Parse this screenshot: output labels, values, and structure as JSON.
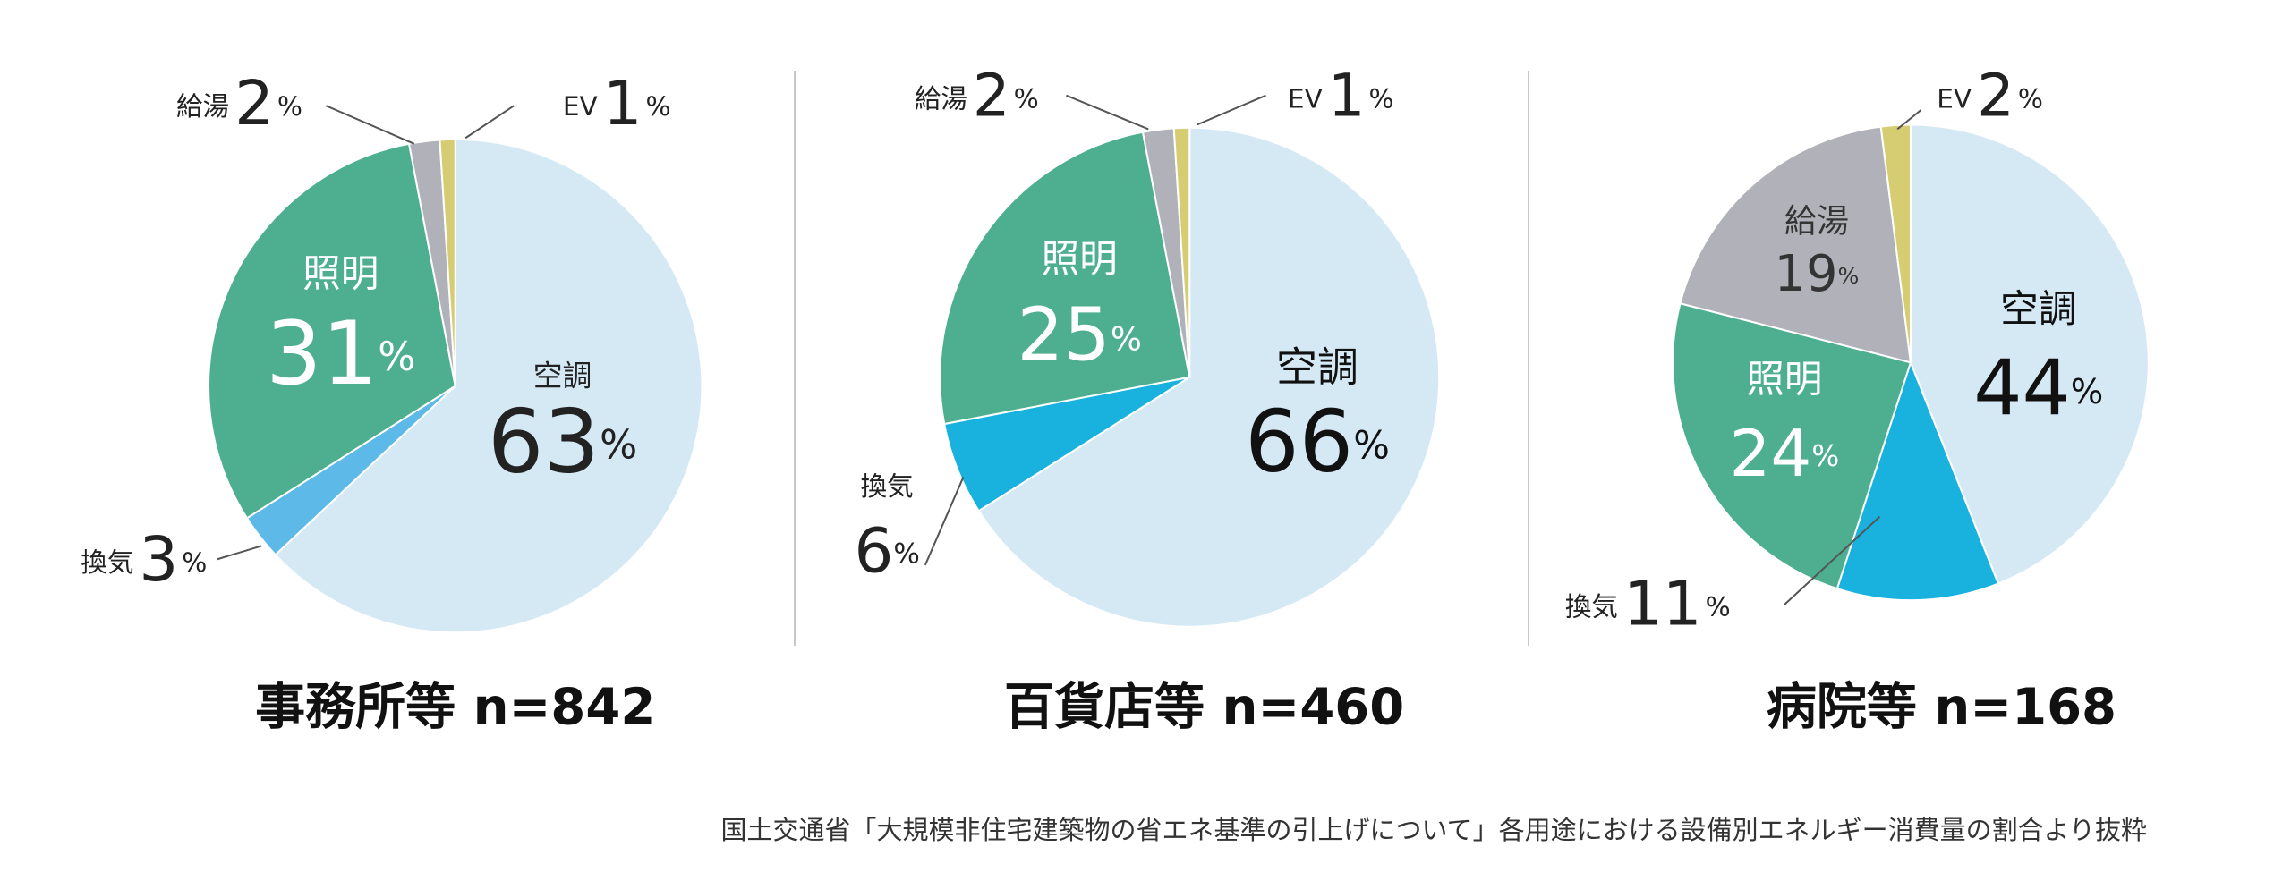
{
  "chart_data": [
    {
      "type": "pie",
      "title": "事務所等 n=842",
      "categories": [
        "空調",
        "換気",
        "照明",
        "給湯",
        "EV"
      ],
      "values": [
        63,
        3,
        31,
        2,
        1
      ],
      "unit": "%",
      "colors": [
        "#d5e9f5",
        "#5cb9e8",
        "#4daf8f",
        "#b1b1b9",
        "#d6cd72"
      ]
    },
    {
      "type": "pie",
      "title": "百貨店等 n=460",
      "categories": [
        "空調",
        "換気",
        "照明",
        "給湯",
        "EV"
      ],
      "values": [
        66,
        6,
        25,
        2,
        1
      ],
      "unit": "%",
      "colors": [
        "#d5e9f5",
        "#19b1de",
        "#4daf8f",
        "#b1b1b9",
        "#d6cd72"
      ]
    },
    {
      "type": "pie",
      "title": "病院等 n=168",
      "categories": [
        "空調",
        "換気",
        "照明",
        "給湯",
        "EV"
      ],
      "values": [
        44,
        11,
        24,
        19,
        2
      ],
      "unit": "%",
      "colors": [
        "#d5e9f5",
        "#19b1de",
        "#4daf8f",
        "#b1b1b9",
        "#d6cd72"
      ]
    }
  ],
  "source": "国土交通省「大規模非住宅建築物の省エネ基準の引上げについて」各用途における設備別エネルギー消費量の割合より抜粋"
}
